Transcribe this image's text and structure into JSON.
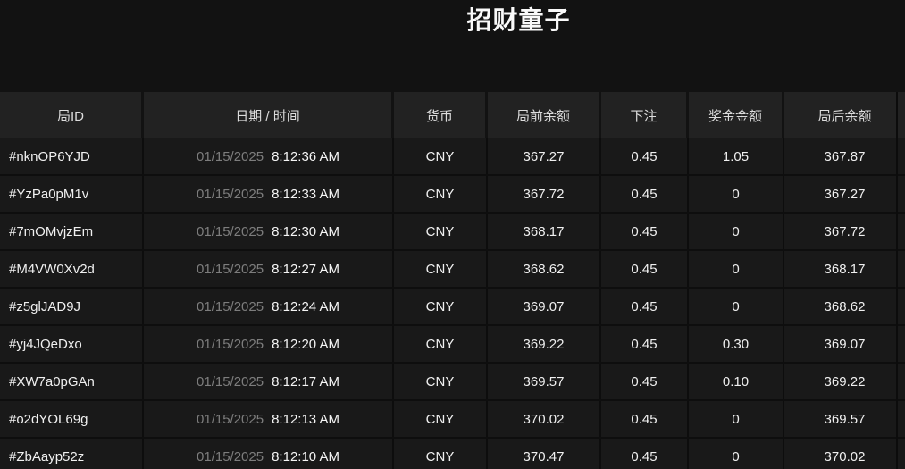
{
  "page": {
    "title": "招财童子"
  },
  "colors": {
    "background": "#121212",
    "header_cell_bg": "#222222",
    "row_bg": "#191919",
    "text_primary": "#f0f0f0",
    "text_muted": "#7d7d7d"
  },
  "table": {
    "columns": [
      {
        "key": "id",
        "label": "局ID"
      },
      {
        "key": "datetime",
        "label": "日期 / 时间"
      },
      {
        "key": "currency",
        "label": "货币"
      },
      {
        "key": "before",
        "label": "局前余额"
      },
      {
        "key": "bet",
        "label": "下注"
      },
      {
        "key": "win",
        "label": "奖金金额"
      },
      {
        "key": "after",
        "label": "局后余额"
      }
    ],
    "rows": [
      {
        "id": "#nknOP6YJD",
        "date": "01/15/2025",
        "time": "8:12:36 AM",
        "currency": "CNY",
        "before": "367.27",
        "bet": "0.45",
        "win": "1.05",
        "after": "367.87"
      },
      {
        "id": "#YzPa0pM1v",
        "date": "01/15/2025",
        "time": "8:12:33 AM",
        "currency": "CNY",
        "before": "367.72",
        "bet": "0.45",
        "win": "0",
        "after": "367.27"
      },
      {
        "id": "#7mOMvjzEm",
        "date": "01/15/2025",
        "time": "8:12:30 AM",
        "currency": "CNY",
        "before": "368.17",
        "bet": "0.45",
        "win": "0",
        "after": "367.72"
      },
      {
        "id": "#M4VW0Xv2d",
        "date": "01/15/2025",
        "time": "8:12:27 AM",
        "currency": "CNY",
        "before": "368.62",
        "bet": "0.45",
        "win": "0",
        "after": "368.17"
      },
      {
        "id": "#z5glJAD9J",
        "date": "01/15/2025",
        "time": "8:12:24 AM",
        "currency": "CNY",
        "before": "369.07",
        "bet": "0.45",
        "win": "0",
        "after": "368.62"
      },
      {
        "id": "#yj4JQeDxo",
        "date": "01/15/2025",
        "time": "8:12:20 AM",
        "currency": "CNY",
        "before": "369.22",
        "bet": "0.45",
        "win": "0.30",
        "after": "369.07"
      },
      {
        "id": "#XW7a0pGAn",
        "date": "01/15/2025",
        "time": "8:12:17 AM",
        "currency": "CNY",
        "before": "369.57",
        "bet": "0.45",
        "win": "0.10",
        "after": "369.22"
      },
      {
        "id": "#o2dYOL69g",
        "date": "01/15/2025",
        "time": "8:12:13 AM",
        "currency": "CNY",
        "before": "370.02",
        "bet": "0.45",
        "win": "0",
        "after": "369.57"
      },
      {
        "id": "#ZbAayp52z",
        "date": "01/15/2025",
        "time": "8:12:10 AM",
        "currency": "CNY",
        "before": "370.47",
        "bet": "0.45",
        "win": "0",
        "after": "370.02"
      }
    ]
  }
}
